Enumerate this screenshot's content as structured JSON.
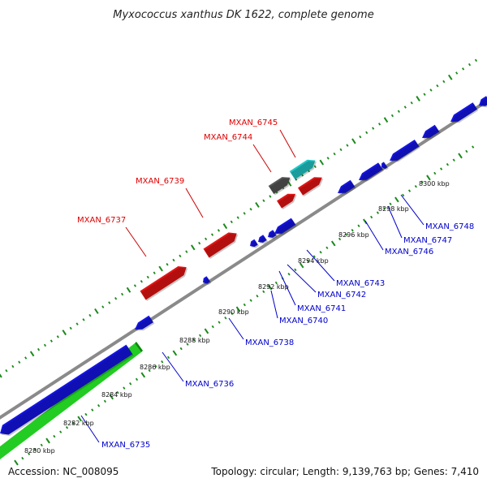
{
  "title": "Myxococcus xanthus DK 1622, complete genome",
  "accession": "Accession: NC_008095",
  "topology": "Topology: circular; Length: 9,139,763 bp; Genes: 7,410",
  "colors": {
    "backbone": "#8a8a8a",
    "forward_cds": "#e61414",
    "reverse_cds": "#1414e6",
    "rna": "#22c8c8",
    "pseudo": "#555555",
    "green_track": "#22cc22",
    "ticks": "#1a8a1a",
    "label_forward": "#e00000",
    "label_reverse": "#0000cc",
    "label_line_forward": "#cc0000",
    "label_line_reverse": "#0000cc"
  },
  "scale_labels": [
    "8280 kbp",
    "8282 kbp",
    "8284 kbp",
    "8286 kbp",
    "8288 kbp",
    "8290 kbp",
    "8292 kbp",
    "8294 kbp",
    "8296 kbp",
    "8298 kbp",
    "8300 kbp"
  ],
  "labels": {
    "forward": [
      "MXAN_6737",
      "MXAN_6739",
      "MXAN_6744",
      "MXAN_6745"
    ],
    "reverse": [
      "MXAN_6735",
      "MXAN_6736",
      "MXAN_6738",
      "MXAN_6740",
      "MXAN_6741",
      "MXAN_6742",
      "MXAN_6743",
      "MXAN_6746",
      "MXAN_6747",
      "MXAN_6748"
    ]
  }
}
